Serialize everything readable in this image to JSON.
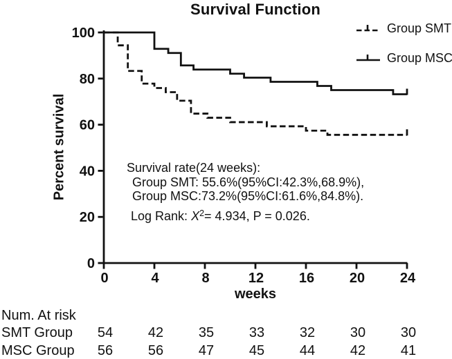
{
  "title": "Survival Function",
  "legend": [
    {
      "label": "Group SMT",
      "style": "dashed"
    },
    {
      "label": "Group MSC",
      "style": "solid"
    }
  ],
  "axes": {
    "xlabel": "weeks",
    "ylabel": "Percent survival"
  },
  "annotation": {
    "line1": "Survival rate(24 weeks):",
    "line2": "Group SMT: 55.6%(95%CI:42.3%,68.9%),",
    "line3": "Group MSC:73.2%(95%CI:61.6%,84.8%).",
    "line4_prefix": "Log Rank: ",
    "line4_chi": "X",
    "line4_sup": "2",
    "line4_rest": "= 4.934, P = 0.026."
  },
  "chart_data": {
    "type": "line",
    "subtype": "kaplan-meier-step",
    "title": "Survival Function",
    "xlabel": "weeks",
    "ylabel": "Percent survival",
    "xlim": [
      0,
      24
    ],
    "ylim": [
      0,
      100
    ],
    "x_ticks": [
      0,
      4,
      8,
      12,
      16,
      20,
      24
    ],
    "y_ticks": [
      0,
      20,
      40,
      60,
      80,
      100
    ],
    "grid": false,
    "legend_position": "top-right",
    "series": [
      {
        "name": "Group SMT",
        "style": "dashed",
        "end_tick": true,
        "steps": [
          [
            0,
            100
          ],
          [
            1.1,
            94.4
          ],
          [
            1.9,
            83.3
          ],
          [
            3,
            77.8
          ],
          [
            4,
            75.9
          ],
          [
            4.9,
            74.1
          ],
          [
            5.8,
            70.4
          ],
          [
            6.9,
            64.8
          ],
          [
            8.2,
            63.0
          ],
          [
            10,
            61.1
          ],
          [
            12.9,
            59.3
          ],
          [
            16,
            57.4
          ],
          [
            17.7,
            55.6
          ],
          [
            24,
            55.6
          ]
        ]
      },
      {
        "name": "Group MSC",
        "style": "solid",
        "end_tick": true,
        "steps": [
          [
            0,
            100
          ],
          [
            4,
            92.9
          ],
          [
            5.1,
            91.1
          ],
          [
            6.1,
            85.7
          ],
          [
            7.1,
            83.9
          ],
          [
            10,
            82.1
          ],
          [
            11.1,
            80.4
          ],
          [
            13.2,
            78.6
          ],
          [
            16.9,
            76.8
          ],
          [
            18,
            75.0
          ],
          [
            22.9,
            73.2
          ],
          [
            24,
            73.2
          ]
        ]
      }
    ],
    "survival_rate_24_weeks": {
      "Group SMT": {
        "rate": "55.6%",
        "ci95": [
          "42.3%",
          "68.9%"
        ]
      },
      "Group MSC": {
        "rate": "73.2%",
        "ci95": [
          "61.6%",
          "84.8%"
        ]
      }
    },
    "log_rank": {
      "chi_squared": 4.934,
      "p": 0.026
    }
  },
  "risk_table": {
    "header": "Num. At risk",
    "weeks": [
      0,
      4,
      8,
      12,
      16,
      20,
      24
    ],
    "rows": [
      {
        "label": "SMT Group",
        "values": [
          "54",
          "42",
          "35",
          "33",
          "32",
          "30",
          "30"
        ]
      },
      {
        "label": "MSC Group",
        "values": [
          "56",
          "56",
          "47",
          "45",
          "44",
          "42",
          "41"
        ]
      }
    ]
  }
}
